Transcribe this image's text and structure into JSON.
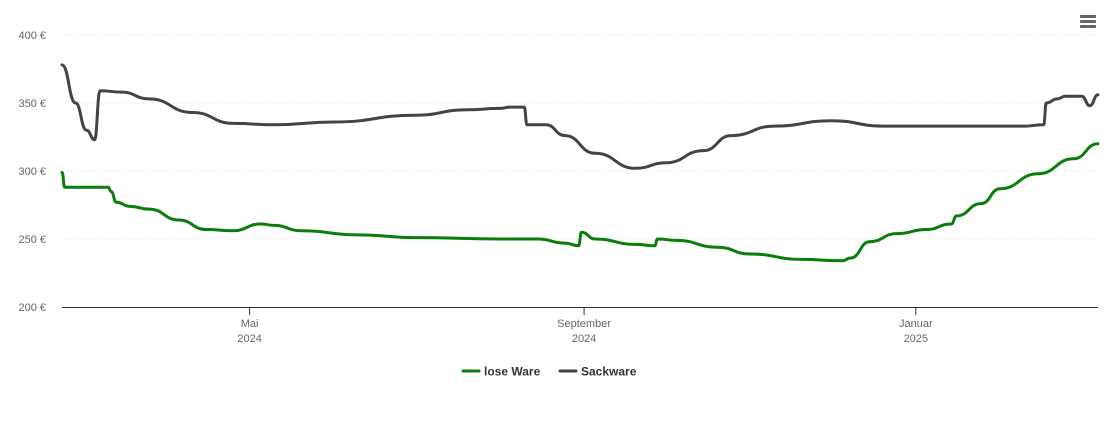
{
  "chart_data": {
    "type": "line",
    "title": "",
    "xlabel": "",
    "ylabel": "",
    "ylim": [
      200,
      400
    ],
    "y_ticks": [
      200,
      250,
      300,
      350,
      400
    ],
    "y_tick_labels": [
      "200 €",
      "250 €",
      "300 €",
      "350 €",
      "400 €"
    ],
    "x_ticks": [
      {
        "date": "2024-05-01",
        "month": "Mai",
        "year": "2024"
      },
      {
        "date": "2024-09-01",
        "month": "September",
        "year": "2024"
      },
      {
        "date": "2025-01-01",
        "month": "Januar",
        "year": "2025"
      }
    ],
    "xlim": [
      "2024-02-22",
      "2025-03-09"
    ],
    "grid": "horizontal",
    "legend_position": "bottom-center",
    "series": [
      {
        "name": "lose Ware",
        "color": "#0a7d0a",
        "points": [
          [
            "2024-02-22",
            299
          ],
          [
            "2024-02-23",
            288
          ],
          [
            "2024-03-10",
            288
          ],
          [
            "2024-03-11",
            285
          ],
          [
            "2024-03-13",
            277
          ],
          [
            "2024-03-18",
            274
          ],
          [
            "2024-03-25",
            272
          ],
          [
            "2024-04-05",
            264
          ],
          [
            "2024-04-15",
            257
          ],
          [
            "2024-04-25",
            256
          ],
          [
            "2024-05-05",
            261
          ],
          [
            "2024-05-10",
            260
          ],
          [
            "2024-05-20",
            256
          ],
          [
            "2024-06-10",
            253
          ],
          [
            "2024-07-01",
            251
          ],
          [
            "2024-08-01",
            250
          ],
          [
            "2024-08-15",
            250
          ],
          [
            "2024-08-25",
            247
          ],
          [
            "2024-08-30",
            245
          ],
          [
            "2024-08-31",
            255
          ],
          [
            "2024-09-05",
            250
          ],
          [
            "2024-09-20",
            246
          ],
          [
            "2024-09-27",
            245
          ],
          [
            "2024-09-28",
            250
          ],
          [
            "2024-10-05",
            249
          ],
          [
            "2024-10-20",
            244
          ],
          [
            "2024-11-01",
            239
          ],
          [
            "2024-11-20",
            235
          ],
          [
            "2024-12-05",
            234
          ],
          [
            "2024-12-08",
            236
          ],
          [
            "2024-12-15",
            248
          ],
          [
            "2024-12-25",
            254
          ],
          [
            "2025-01-05",
            257
          ],
          [
            "2025-01-14",
            261
          ],
          [
            "2025-01-16",
            267
          ],
          [
            "2025-01-25",
            276
          ],
          [
            "2025-02-01",
            287
          ],
          [
            "2025-02-15",
            298
          ],
          [
            "2025-02-28",
            309
          ],
          [
            "2025-03-09",
            320
          ]
        ]
      },
      {
        "name": "Sackware",
        "color": "#434348",
        "points": [
          [
            "2024-02-22",
            378
          ],
          [
            "2024-02-27",
            350
          ],
          [
            "2024-03-02",
            330
          ],
          [
            "2024-03-05",
            323
          ],
          [
            "2024-03-07",
            359
          ],
          [
            "2024-03-15",
            358
          ],
          [
            "2024-03-25",
            353
          ],
          [
            "2024-04-10",
            343
          ],
          [
            "2024-04-25",
            335
          ],
          [
            "2024-05-10",
            334
          ],
          [
            "2024-06-01",
            336
          ],
          [
            "2024-07-01",
            341
          ],
          [
            "2024-07-20",
            345
          ],
          [
            "2024-08-01",
            346
          ],
          [
            "2024-08-05",
            347
          ],
          [
            "2024-08-10",
            347
          ],
          [
            "2024-08-11",
            334
          ],
          [
            "2024-08-15",
            334
          ],
          [
            "2024-08-18",
            334
          ],
          [
            "2024-08-25",
            326
          ],
          [
            "2024-09-05",
            313
          ],
          [
            "2024-09-20",
            302
          ],
          [
            "2024-10-01",
            306
          ],
          [
            "2024-10-15",
            315
          ],
          [
            "2024-10-25",
            326
          ],
          [
            "2024-11-10",
            333
          ],
          [
            "2024-12-01",
            337
          ],
          [
            "2024-12-20",
            333
          ],
          [
            "2025-01-15",
            333
          ],
          [
            "2025-02-10",
            333
          ],
          [
            "2025-02-17",
            334
          ],
          [
            "2025-02-18",
            350
          ],
          [
            "2025-02-22",
            353
          ],
          [
            "2025-02-25",
            355
          ],
          [
            "2025-03-03",
            355
          ],
          [
            "2025-03-06",
            348
          ],
          [
            "2025-03-09",
            356
          ]
        ]
      }
    ]
  }
}
